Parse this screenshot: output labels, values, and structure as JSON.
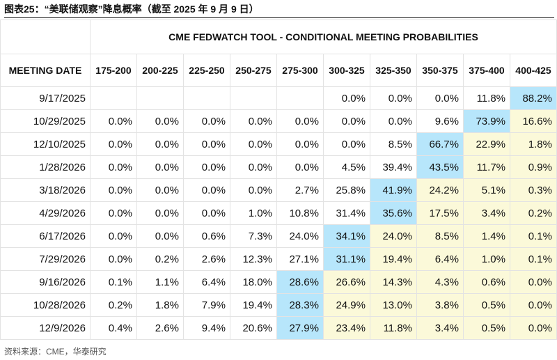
{
  "header": {
    "title": "图表25：“美联储观察”降息概率（截至 2025 年 9 月 9 日）"
  },
  "table": {
    "super_header": "CME FEDWATCH TOOL - CONDITIONAL MEETING PROBABILITIES",
    "columns": [
      "MEETING DATE",
      "175-200",
      "200-225",
      "225-250",
      "250-275",
      "275-300",
      "300-325",
      "325-350",
      "350-375",
      "375-400",
      "400-425"
    ],
    "rows": [
      [
        "9/17/2025",
        null,
        null,
        null,
        null,
        null,
        "0.0%",
        "0.0%",
        "0.0%",
        "11.8%",
        "88.2%"
      ],
      [
        "10/29/2025",
        "0.0%",
        "0.0%",
        "0.0%",
        "0.0%",
        "0.0%",
        "0.0%",
        "0.0%",
        "9.6%",
        "73.9%",
        "16.6%"
      ],
      [
        "12/10/2025",
        "0.0%",
        "0.0%",
        "0.0%",
        "0.0%",
        "0.0%",
        "0.0%",
        "8.5%",
        "66.7%",
        "22.9%",
        "1.8%"
      ],
      [
        "1/28/2026",
        "0.0%",
        "0.0%",
        "0.0%",
        "0.0%",
        "0.0%",
        "4.5%",
        "39.4%",
        "43.5%",
        "11.7%",
        "0.9%"
      ],
      [
        "3/18/2026",
        "0.0%",
        "0.0%",
        "0.0%",
        "0.0%",
        "2.7%",
        "25.8%",
        "41.9%",
        "24.2%",
        "5.1%",
        "0.3%"
      ],
      [
        "4/29/2026",
        "0.0%",
        "0.0%",
        "0.0%",
        "1.0%",
        "10.8%",
        "31.4%",
        "35.6%",
        "17.5%",
        "3.4%",
        "0.2%"
      ],
      [
        "6/17/2026",
        "0.0%",
        "0.0%",
        "0.6%",
        "7.3%",
        "24.0%",
        "34.1%",
        "24.0%",
        "8.5%",
        "1.4%",
        "0.1%"
      ],
      [
        "7/29/2026",
        "0.0%",
        "0.2%",
        "2.6%",
        "12.3%",
        "27.1%",
        "31.1%",
        "19.4%",
        "6.4%",
        "1.0%",
        "0.1%"
      ],
      [
        "9/16/2026",
        "0.1%",
        "1.1%",
        "6.4%",
        "18.0%",
        "28.6%",
        "26.6%",
        "14.3%",
        "4.3%",
        "0.6%",
        "0.0%"
      ],
      [
        "10/28/2026",
        "0.2%",
        "1.8%",
        "7.9%",
        "19.4%",
        "28.3%",
        "24.9%",
        "13.0%",
        "3.8%",
        "0.5%",
        "0.0%"
      ],
      [
        "12/9/2026",
        "0.4%",
        "2.6%",
        "9.4%",
        "20.6%",
        "27.9%",
        "23.4%",
        "11.8%",
        "3.4%",
        "0.5%",
        "0.0%"
      ]
    ],
    "colors": {
      "max": "#b7e6fb",
      "above_max": "#fbf9d9"
    }
  },
  "source": "资料来源：CME，华泰研究"
}
